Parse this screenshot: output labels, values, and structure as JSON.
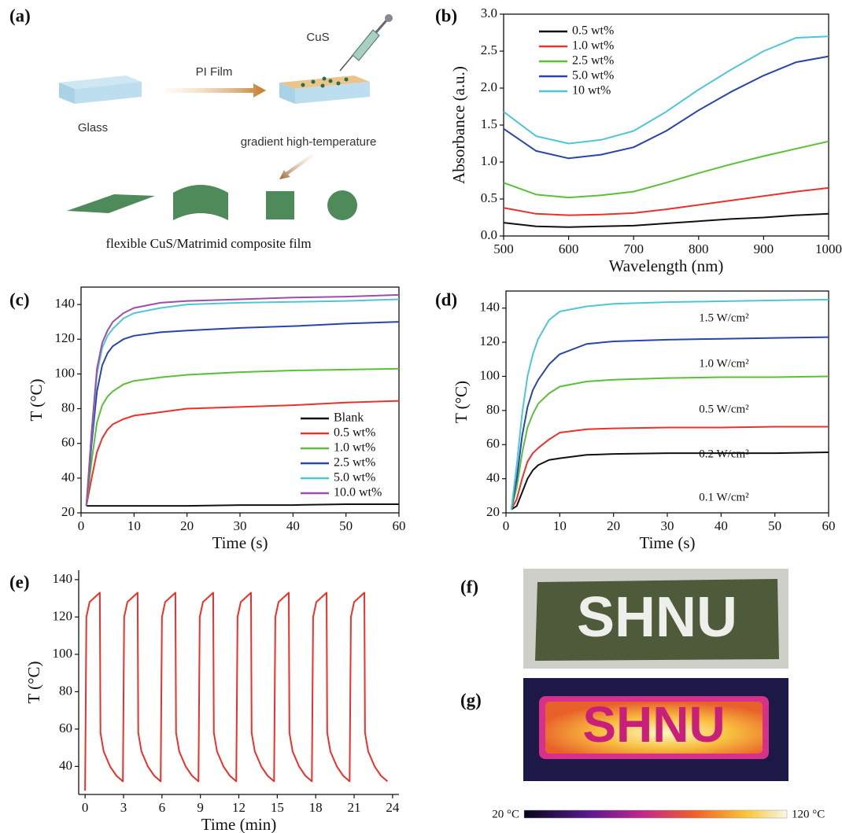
{
  "panels": [
    "(a)",
    "(b)",
    "(c)",
    "(d)",
    "(e)",
    "(f)",
    "(g)"
  ],
  "diagram": {
    "pi_film": "PI Film",
    "cus": "CuS",
    "glass": "Glass",
    "step": "gradient high-temperature",
    "caption": "flexible CuS/Matrimid composite film"
  },
  "photo": {
    "text": "SHNU"
  },
  "thermal": {
    "text": "SHNU",
    "colorbar_min": "20 °C",
    "colorbar_max": "120 °C"
  },
  "chart_data": [
    {
      "type": "line",
      "xlabel": "Wavelength (nm)",
      "ylabel": "Absorbance (a.u.)",
      "legend": "upper left",
      "x": [
        500,
        550,
        600,
        650,
        700,
        750,
        800,
        850,
        900,
        950,
        1000
      ],
      "xlim": [
        500,
        1000
      ],
      "xticks": [
        500,
        600,
        700,
        800,
        900,
        1000
      ],
      "ylim": [
        0,
        3
      ],
      "yticks": [
        {
          "value": 0,
          "label": "0.0"
        },
        0.5,
        {
          "value": 1,
          "label": "1.0"
        },
        1.5,
        {
          "value": 2,
          "label": "2.0"
        },
        2.5,
        {
          "value": 3,
          "label": "3.0"
        }
      ],
      "series": [
        {
          "name": "0.5 wt%",
          "color": "#111111",
          "values": [
            0.18,
            0.13,
            0.12,
            0.13,
            0.14,
            0.17,
            0.2,
            0.23,
            0.25,
            0.28,
            0.3
          ]
        },
        {
          "name": "1.0 wt%",
          "color": "#e8322a",
          "values": [
            0.38,
            0.3,
            0.28,
            0.29,
            0.31,
            0.36,
            0.42,
            0.48,
            0.54,
            0.6,
            0.65
          ]
        },
        {
          "name": "2.5 wt%",
          "color": "#5cbf3a",
          "values": [
            0.72,
            0.56,
            0.52,
            0.55,
            0.6,
            0.72,
            0.85,
            0.97,
            1.08,
            1.18,
            1.28
          ]
        },
        {
          "name": "5.0 wt%",
          "color": "#2845a8",
          "values": [
            1.45,
            1.15,
            1.05,
            1.1,
            1.2,
            1.42,
            1.7,
            1.95,
            2.17,
            2.35,
            2.43
          ]
        },
        {
          "name": "10 wt%",
          "color": "#4fc6d6",
          "values": [
            1.68,
            1.35,
            1.25,
            1.3,
            1.42,
            1.68,
            1.98,
            2.25,
            2.5,
            2.68,
            2.7
          ]
        }
      ]
    },
    {
      "type": "line",
      "xlabel": "Time (s)",
      "ylabel": "T (°C)",
      "legend": "lower right",
      "x": [
        1,
        2,
        3,
        4,
        5,
        6,
        8,
        10,
        15,
        20,
        30,
        40,
        50,
        60
      ],
      "xlim": [
        0,
        60
      ],
      "xticks": [
        0,
        10,
        20,
        30,
        40,
        50,
        60
      ],
      "ylim": [
        20,
        150
      ],
      "yticks": [
        20,
        40,
        60,
        80,
        100,
        120,
        140
      ],
      "series": [
        {
          "name": "Blank",
          "color": "#111111",
          "values": [
            24,
            24,
            24,
            24,
            24,
            24,
            24,
            24,
            24,
            24,
            24.5,
            24.5,
            25,
            25
          ]
        },
        {
          "name": "0.5 wt%",
          "color": "#e8322a",
          "values": [
            24,
            40,
            55,
            63,
            68,
            71,
            74,
            76,
            78,
            80,
            81,
            82,
            83.5,
            84.5
          ]
        },
        {
          "name": "1.0 wt%",
          "color": "#5cbf3a",
          "values": [
            24,
            50,
            72,
            82,
            87,
            90,
            94,
            96,
            98,
            99.5,
            101,
            102,
            102.5,
            103
          ]
        },
        {
          "name": "2.5 wt%",
          "color": "#2845a8",
          "values": [
            24,
            60,
            90,
            105,
            112,
            116,
            120,
            122,
            124,
            125,
            126.5,
            127.5,
            129,
            130
          ]
        },
        {
          "name": "5.0 wt%",
          "color": "#4fc6d6",
          "values": [
            24,
            65,
            100,
            115,
            122,
            126,
            132,
            135,
            138,
            140,
            141,
            141.5,
            142,
            143
          ]
        },
        {
          "name": "10.0 wt%",
          "color": "#9b4fa8",
          "values": [
            24,
            67,
            103,
            118,
            125,
            130,
            135,
            138,
            141,
            142,
            143,
            144,
            144.5,
            145.5
          ]
        }
      ]
    },
    {
      "type": "line",
      "xlabel": "Time (s)",
      "ylabel": "T (°C)",
      "annotations": [
        "1.5 W/cm²",
        "1.0 W/cm²",
        "0.5 W/cm²",
        "0.2 W/cm²",
        "0.1 W/cm²"
      ],
      "x": [
        1,
        2,
        3,
        4,
        5,
        6,
        8,
        10,
        15,
        20,
        30,
        40,
        50,
        60
      ],
      "xlim": [
        0,
        60
      ],
      "xticks": [
        0,
        10,
        20,
        30,
        40,
        50,
        60
      ],
      "ylim": [
        20,
        150
      ],
      "yticks": [
        20,
        40,
        60,
        80,
        100,
        120,
        140
      ],
      "series": [
        {
          "color": "#111111",
          "values": [
            22,
            24,
            32,
            40,
            45,
            48,
            51,
            52,
            54,
            54.5,
            55,
            55,
            55,
            55.5
          ]
        },
        {
          "color": "#e8322a",
          "values": [
            22,
            28,
            40,
            50,
            55,
            58,
            63,
            67,
            69,
            69.5,
            70,
            70,
            70.5,
            70.5
          ]
        },
        {
          "color": "#5cbf3a",
          "values": [
            22,
            35,
            55,
            70,
            78,
            84,
            90,
            94,
            97,
            98,
            99,
            99.5,
            99.5,
            100
          ]
        },
        {
          "color": "#2845a8",
          "values": [
            22,
            40,
            65,
            82,
            92,
            98,
            107,
            113,
            119,
            120.5,
            121.5,
            122,
            122.5,
            123
          ]
        },
        {
          "color": "#4fc6d6",
          "values": [
            22,
            48,
            78,
            100,
            113,
            122,
            133,
            138,
            141,
            142.5,
            143.5,
            144,
            144.5,
            145
          ]
        }
      ]
    },
    {
      "type": "line",
      "xlabel": "Time (min)",
      "ylabel": "T (°C)",
      "x": [
        0,
        0.1,
        0.35,
        1.15,
        1.2,
        1.45,
        1.95,
        2.45,
        2.95,
        3.05,
        3.3,
        4.1,
        4.15,
        4.4,
        4.9,
        5.4,
        5.9,
        6,
        6.25,
        7.05,
        7.1,
        7.35,
        7.85,
        8.35,
        8.85,
        8.95,
        9.2,
        10,
        10.05,
        10.3,
        10.8,
        11.3,
        11.8,
        11.9,
        12.15,
        12.95,
        13,
        13.25,
        13.75,
        14.25,
        14.75,
        14.85,
        15.1,
        15.9,
        15.95,
        16.2,
        16.7,
        17.2,
        17.7,
        17.8,
        18.05,
        18.85,
        18.9,
        19.15,
        19.65,
        20.15,
        20.65,
        20.75,
        21,
        21.8,
        21.85,
        22.1,
        22.6,
        23.1,
        23.6
      ],
      "xlim": [
        -0.5,
        24.5
      ],
      "xticks": [
        0,
        3,
        6,
        9,
        12,
        15,
        18,
        21,
        24
      ],
      "ylim": [
        25,
        145
      ],
      "yticks": [
        40,
        60,
        80,
        100,
        120,
        140
      ],
      "series": [
        {
          "color": "#e8322a",
          "values": [
            27,
            120,
            128,
            133,
            58,
            48,
            40,
            35,
            32,
            120,
            128,
            133,
            58,
            48,
            40,
            35,
            32,
            120,
            128,
            133,
            58,
            48,
            40,
            35,
            32,
            120,
            128,
            133,
            58,
            48,
            40,
            35,
            32,
            120,
            128,
            133,
            58,
            48,
            40,
            35,
            32,
            120,
            128,
            133,
            58,
            48,
            40,
            35,
            32,
            120,
            128,
            133,
            58,
            48,
            40,
            35,
            32,
            120,
            128,
            133,
            58,
            48,
            40,
            35,
            32
          ]
        }
      ]
    }
  ]
}
